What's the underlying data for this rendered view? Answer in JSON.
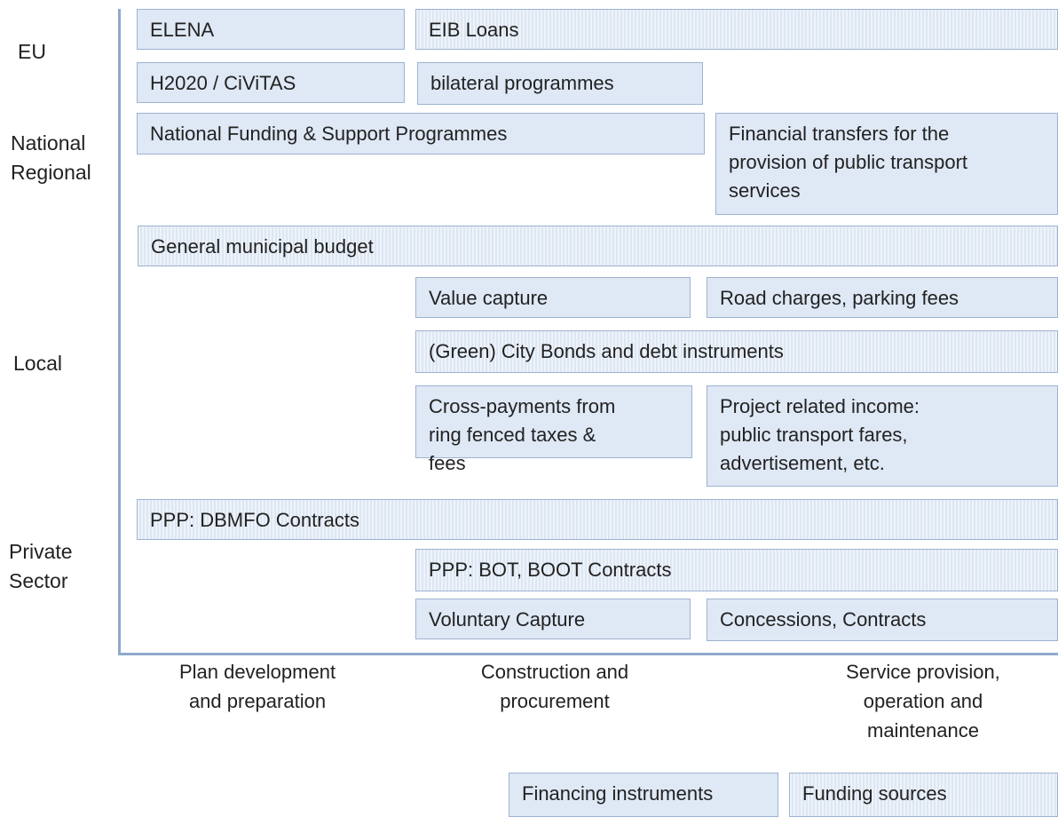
{
  "rows": [
    [
      "EU"
    ],
    [
      "National",
      "Regional"
    ],
    [
      "Local"
    ],
    [
      "Private",
      "Sector"
    ]
  ],
  "boxes": [
    {
      "lines": [
        "ELENA"
      ]
    },
    {
      "lines": [
        "EIB Loans"
      ]
    },
    {
      "lines": [
        "H2020 / CiViTAS"
      ]
    },
    {
      "lines": [
        "bilateral programmes"
      ]
    },
    {
      "lines": [
        "National Funding & Support Programmes"
      ]
    },
    {
      "lines": [
        "Financial transfers for the",
        "provision of public transport",
        "services"
      ]
    },
    {
      "lines": [
        "General municipal budget"
      ]
    },
    {
      "lines": [
        "Value capture"
      ]
    },
    {
      "lines": [
        "Road charges, parking fees"
      ]
    },
    {
      "lines": [
        "(Green) City Bonds and debt instruments"
      ]
    },
    {
      "lines": [
        "Cross-payments from",
        "ring fenced taxes &",
        "fees"
      ]
    },
    {
      "lines": [
        "Project related income:",
        "public transport fares,",
        "advertisement, etc."
      ]
    },
    {
      "lines": [
        "PPP: DBMFO Contracts"
      ]
    },
    {
      "lines": [
        "PPP: BOT, BOOT Contracts"
      ]
    },
    {
      "lines": [
        "Voluntary Capture"
      ]
    },
    {
      "lines": [
        "Concessions, Contracts"
      ]
    }
  ],
  "columns": [
    [
      "Plan development",
      "and preparation"
    ],
    [
      "Construction and",
      "procurement"
    ],
    [
      "Service provision,",
      "operation and",
      "maintenance"
    ]
  ],
  "legend": [
    {
      "lines": [
        "Financing instruments"
      ]
    },
    {
      "lines": [
        "Funding sources"
      ]
    }
  ]
}
